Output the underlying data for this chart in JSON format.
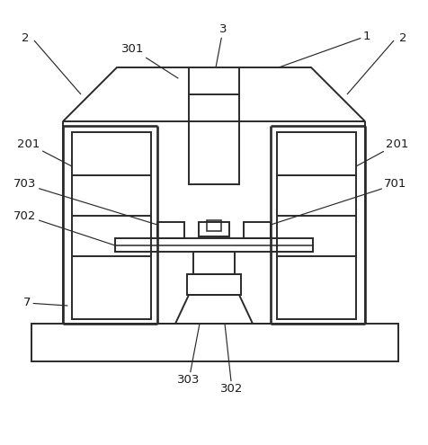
{
  "bg_color": "#ffffff",
  "line_color": "#2a2a2a",
  "line_width": 1.4,
  "label_color": "#1a1a1a",
  "label_fontsize": 9.5,
  "figsize": [
    4.76,
    4.95
  ],
  "dpi": 100
}
